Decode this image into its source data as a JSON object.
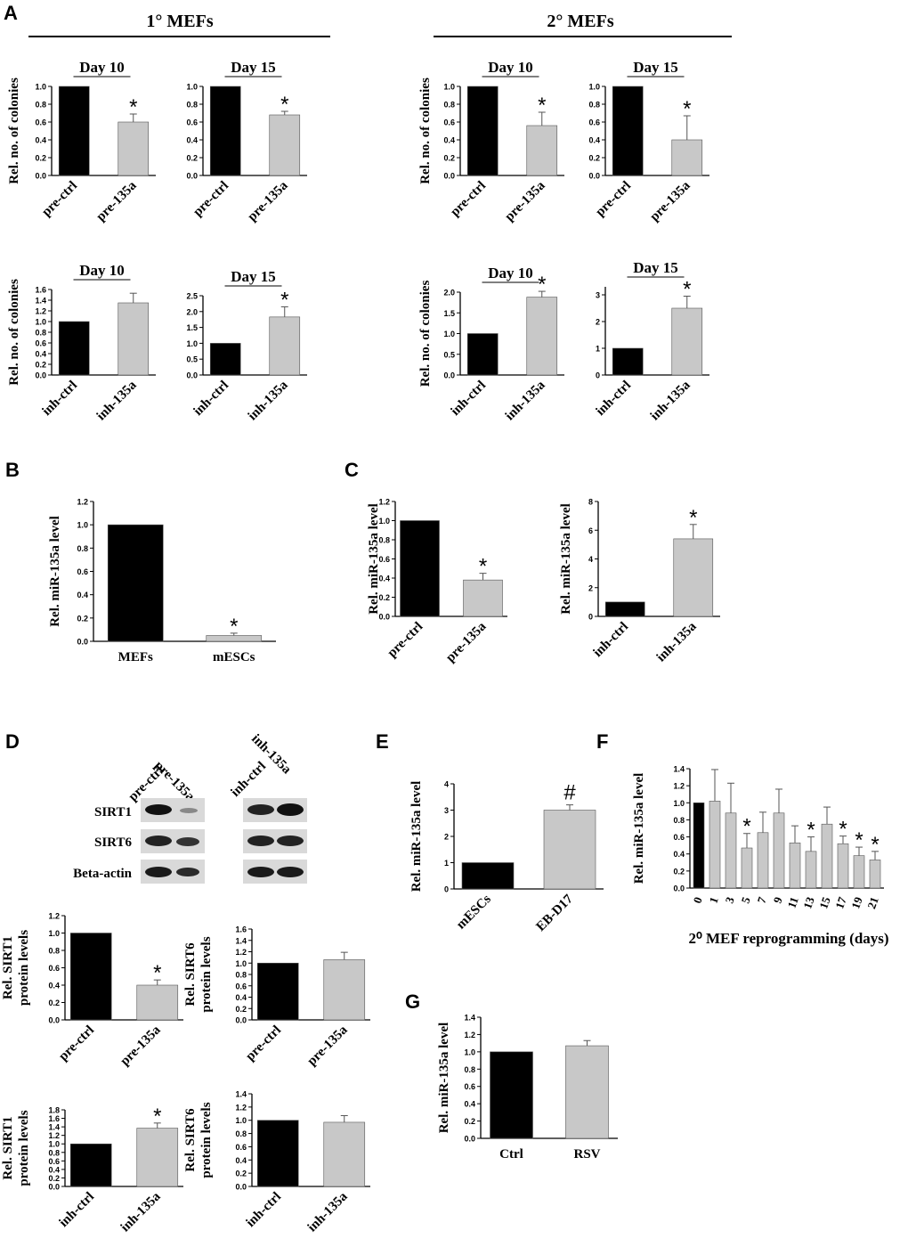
{
  "panels": {
    "A": "A",
    "B": "B",
    "C": "C",
    "D": "D",
    "E": "E",
    "F": "F",
    "G": "G"
  },
  "section_titles": {
    "primary": "1° MEFs",
    "secondary": "2° MEFs"
  },
  "blot": {
    "lane_labels_left": [
      "pre-ctrl",
      "pre-135a"
    ],
    "lane_labels_right": [
      "inh-ctrl",
      "inh-135a"
    ],
    "row_labels": [
      "SIRT1",
      "SIRT6",
      "Beta-actin"
    ]
  },
  "f_xlabel": "2⁰ MEF reprogramming (days)",
  "colors": {
    "control": "#000000",
    "treatment": "#c8c8c8",
    "axis": "#000000"
  },
  "chart_data": [
    {
      "id": "A1",
      "type": "bar",
      "header": "Day 10",
      "ylabel": "Rel. no. of colonies",
      "categories": [
        "pre-ctrl",
        "pre-135a"
      ],
      "values": [
        1.0,
        0.6
      ],
      "errors": [
        0,
        0.09
      ],
      "sig": [
        "",
        "*"
      ],
      "ylim": [
        0,
        1.0
      ],
      "ticks": [
        "0.0",
        "0.2",
        "0.4",
        "0.6",
        "0.8",
        "1.0"
      ]
    },
    {
      "id": "A2",
      "type": "bar",
      "header": "Day 15",
      "ylabel": "",
      "categories": [
        "pre-ctrl",
        "pre-135a"
      ],
      "values": [
        1.0,
        0.68
      ],
      "errors": [
        0,
        0.04
      ],
      "sig": [
        "",
        "*"
      ],
      "ylim": [
        0,
        1.0
      ],
      "ticks": [
        "0.0",
        "0.2",
        "0.4",
        "0.6",
        "0.8",
        "1.0"
      ]
    },
    {
      "id": "A3",
      "type": "bar",
      "header": "Day 10",
      "ylabel": "Rel. no. of colonies",
      "categories": [
        "pre-ctrl",
        "pre-135a"
      ],
      "values": [
        1.0,
        0.56
      ],
      "errors": [
        0,
        0.15
      ],
      "sig": [
        "",
        "*"
      ],
      "ylim": [
        0,
        1.0
      ],
      "ticks": [
        "0.0",
        "0.2",
        "0.4",
        "0.6",
        "0.8",
        "1.0"
      ]
    },
    {
      "id": "A4",
      "type": "bar",
      "header": "Day 15",
      "ylabel": "",
      "categories": [
        "pre-ctrl",
        "pre-135a"
      ],
      "values": [
        1.0,
        0.4
      ],
      "errors": [
        0,
        0.27
      ],
      "sig": [
        "",
        "*"
      ],
      "ylim": [
        0,
        1.0
      ],
      "ticks": [
        "0.0",
        "0.2",
        "0.4",
        "0.6",
        "0.8",
        "1.0"
      ]
    },
    {
      "id": "A5",
      "type": "bar",
      "header": "Day 10",
      "ylabel": "Rel. no. of colonies",
      "categories": [
        "inh-ctrl",
        "inh-135a"
      ],
      "values": [
        1.0,
        1.35
      ],
      "errors": [
        0,
        0.18
      ],
      "sig": [
        "",
        ""
      ],
      "ylim": [
        0,
        1.6
      ],
      "ticks": [
        "0.0",
        "0.2",
        "0.4",
        "0.6",
        "0.8",
        "1.0",
        "1.2",
        "1.4",
        "1.6"
      ]
    },
    {
      "id": "A6",
      "type": "bar",
      "header": "Day 15",
      "ylabel": "",
      "categories": [
        "inh-ctrl",
        "inh-135a"
      ],
      "values": [
        1.0,
        1.83
      ],
      "errors": [
        0,
        0.32
      ],
      "sig": [
        "",
        "*"
      ],
      "ylim": [
        0,
        2.5
      ],
      "ticks": [
        "0.0",
        "0.5",
        "1.0",
        "1.5",
        "2.0",
        "2.5"
      ]
    },
    {
      "id": "A7",
      "type": "bar",
      "header": "Day 10",
      "ylabel": "Rel. no. of colonies",
      "categories": [
        "inh-ctrl",
        "inh-135a"
      ],
      "values": [
        1.0,
        1.88
      ],
      "errors": [
        0,
        0.14
      ],
      "sig": [
        "",
        "*"
      ],
      "ylim": [
        0,
        2.0
      ],
      "ticks": [
        "0.0",
        "0.5",
        "1.0",
        "1.5",
        "2.0"
      ]
    },
    {
      "id": "A8",
      "type": "bar",
      "header": "Day 15",
      "ylabel": "",
      "categories": [
        "inh-ctrl",
        "inh-135a"
      ],
      "values": [
        1.0,
        2.5
      ],
      "errors": [
        0,
        0.45
      ],
      "sig": [
        "",
        "*"
      ],
      "ylim": [
        0,
        3.3
      ],
      "ticks": [
        "0",
        "1",
        "2",
        "3"
      ]
    },
    {
      "id": "B",
      "type": "bar",
      "header": "",
      "ylabel": "Rel. miR-135a level",
      "categories": [
        "MEFs",
        "mESCs"
      ],
      "values": [
        1.0,
        0.05
      ],
      "errors": [
        0,
        0.02
      ],
      "sig": [
        "",
        "*"
      ],
      "ylim": [
        0,
        1.2
      ],
      "ticks": [
        "0.0",
        "0.2",
        "0.4",
        "0.6",
        "0.8",
        "1.0",
        "1.2"
      ]
    },
    {
      "id": "C1",
      "type": "bar",
      "header": "",
      "ylabel": "Rel. miR-135a level",
      "categories": [
        "pre-ctrl",
        "pre-135a"
      ],
      "values": [
        1.0,
        0.38
      ],
      "errors": [
        0,
        0.07
      ],
      "sig": [
        "",
        "*"
      ],
      "ylim": [
        0,
        1.2
      ],
      "ticks": [
        "0.0",
        "0.2",
        "0.4",
        "0.6",
        "0.8",
        "1.0",
        "1.2"
      ]
    },
    {
      "id": "C2",
      "type": "bar",
      "header": "",
      "ylabel": "Rel. miR-135a level",
      "categories": [
        "inh-ctrl",
        "inh-135a"
      ],
      "values": [
        1.0,
        5.4
      ],
      "errors": [
        0,
        1.0
      ],
      "sig": [
        "",
        "*"
      ],
      "ylim": [
        0,
        8
      ],
      "ticks": [
        "0",
        "2",
        "4",
        "6",
        "8"
      ]
    },
    {
      "id": "D1",
      "type": "bar",
      "header": "",
      "ylabel": "Rel. SIRT1|protein levels",
      "categories": [
        "pre-ctrl",
        "pre-135a"
      ],
      "values": [
        1.0,
        0.4
      ],
      "errors": [
        0,
        0.06
      ],
      "sig": [
        "",
        "*"
      ],
      "ylim": [
        0,
        1.2
      ],
      "ticks": [
        "0.0",
        "0.2",
        "0.4",
        "0.6",
        "0.8",
        "1.0",
        "1.2"
      ]
    },
    {
      "id": "D2",
      "type": "bar",
      "header": "",
      "ylabel": "Rel. SIRT6|protein levels",
      "categories": [
        "pre-ctrl",
        "pre-135a"
      ],
      "values": [
        1.0,
        1.06
      ],
      "errors": [
        0,
        0.13
      ],
      "sig": [
        "",
        ""
      ],
      "ylim": [
        0,
        1.6
      ],
      "ticks": [
        "0.0",
        "0.2",
        "0.4",
        "0.6",
        "0.8",
        "1.0",
        "1.2",
        "1.4",
        "1.6"
      ]
    },
    {
      "id": "D3",
      "type": "bar",
      "header": "",
      "ylabel": "Rel. SIRT1|protein levels",
      "categories": [
        "inh-ctrl",
        "inh-135a"
      ],
      "values": [
        1.0,
        1.37
      ],
      "errors": [
        0,
        0.12
      ],
      "sig": [
        "",
        "*"
      ],
      "ylim": [
        0,
        1.8
      ],
      "ticks": [
        "0.0",
        "0.2",
        "0.4",
        "0.6",
        "0.8",
        "1.0",
        "1.2",
        "1.4",
        "1.6",
        "1.8"
      ]
    },
    {
      "id": "D4",
      "type": "bar",
      "header": "",
      "ylabel": "Rel. SIRT6|protein levels",
      "categories": [
        "inh-ctrl",
        "inh-135a"
      ],
      "values": [
        1.0,
        0.97
      ],
      "errors": [
        0,
        0.1
      ],
      "sig": [
        "",
        ""
      ],
      "ylim": [
        0,
        1.4
      ],
      "ticks": [
        "0.0",
        "0.2",
        "0.4",
        "0.6",
        "0.8",
        "1.0",
        "1.2",
        "1.4"
      ]
    },
    {
      "id": "E",
      "type": "bar",
      "header": "",
      "ylabel": "Rel. miR-135a level",
      "categories": [
        "mESCs",
        "EB-D17"
      ],
      "values": [
        1.0,
        3.0
      ],
      "errors": [
        0,
        0.2
      ],
      "sig": [
        "",
        "#"
      ],
      "ylim": [
        0,
        4
      ],
      "ticks": [
        "0",
        "1",
        "2",
        "3",
        "4"
      ]
    },
    {
      "id": "F",
      "type": "bar",
      "header": "",
      "ylabel": "Rel. miR-135a level",
      "categories": [
        "0",
        "1",
        "3",
        "5",
        "7",
        "9",
        "11",
        "13",
        "15",
        "17",
        "19",
        "21"
      ],
      "values": [
        1.0,
        1.02,
        0.88,
        0.47,
        0.65,
        0.88,
        0.53,
        0.43,
        0.75,
        0.52,
        0.38,
        0.33
      ],
      "errors": [
        0,
        0.37,
        0.35,
        0.17,
        0.24,
        0.28,
        0.2,
        0.17,
        0.2,
        0.09,
        0.1,
        0.1
      ],
      "sig": [
        "",
        "",
        "",
        "*",
        "",
        "",
        "",
        "*",
        "",
        "*",
        "*",
        "*"
      ],
      "ylim": [
        0,
        1.4
      ],
      "ticks": [
        "0.0",
        "0.2",
        "0.4",
        "0.6",
        "0.8",
        "1.0",
        "1.2",
        "1.4"
      ]
    },
    {
      "id": "G",
      "type": "bar",
      "header": "",
      "ylabel": "Rel. miR-135a level",
      "categories": [
        "Ctrl",
        "RSV"
      ],
      "values": [
        1.0,
        1.07
      ],
      "errors": [
        0,
        0.06
      ],
      "sig": [
        "",
        ""
      ],
      "ylim": [
        0,
        1.4
      ],
      "ticks": [
        "0.0",
        "0.2",
        "0.4",
        "0.6",
        "0.8",
        "1.0",
        "1.2",
        "1.4"
      ]
    }
  ]
}
